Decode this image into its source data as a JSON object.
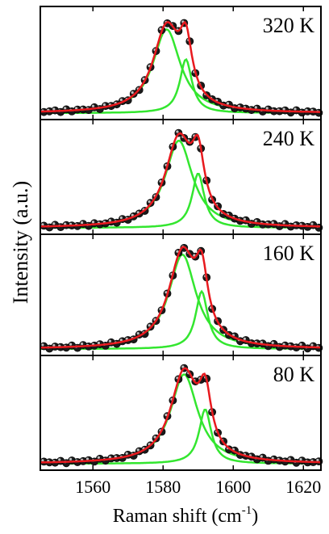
{
  "chart_data": {
    "type": "line",
    "xlabel": "Raman shift (cm",
    "xlabel_sup": "-1",
    "xlabel_close": ")",
    "ylabel": "Intensity (a.u.)",
    "xlim": [
      1545,
      1625
    ],
    "xticks": [
      "1560",
      "1580",
      "1600",
      "1620"
    ],
    "tick_values": [
      1560,
      1580,
      1600,
      1620
    ],
    "colors": {
      "data": "#1a1a1a",
      "fit": "#e8191e",
      "components": "#33e62f"
    },
    "panels": [
      {
        "label": "320 K",
        "peaks": [
          {
            "center": 1581,
            "width": 9.5,
            "amp": 0.78
          },
          {
            "center": 1586.5,
            "width": 4.2,
            "amp": 0.5
          }
        ]
      },
      {
        "label": "240 K",
        "peaks": [
          {
            "center": 1584.5,
            "width": 9.5,
            "amp": 0.8
          },
          {
            "center": 1590,
            "width": 4.2,
            "amp": 0.5
          }
        ]
      },
      {
        "label": "160 K",
        "peaks": [
          {
            "center": 1585.5,
            "width": 9.5,
            "amp": 0.82
          },
          {
            "center": 1591,
            "width": 4.2,
            "amp": 0.5
          }
        ]
      },
      {
        "label": "80 K",
        "peaks": [
          {
            "center": 1586,
            "width": 9.5,
            "amp": 0.82
          },
          {
            "center": 1592,
            "width": 4.2,
            "amp": 0.5
          }
        ]
      }
    ]
  }
}
